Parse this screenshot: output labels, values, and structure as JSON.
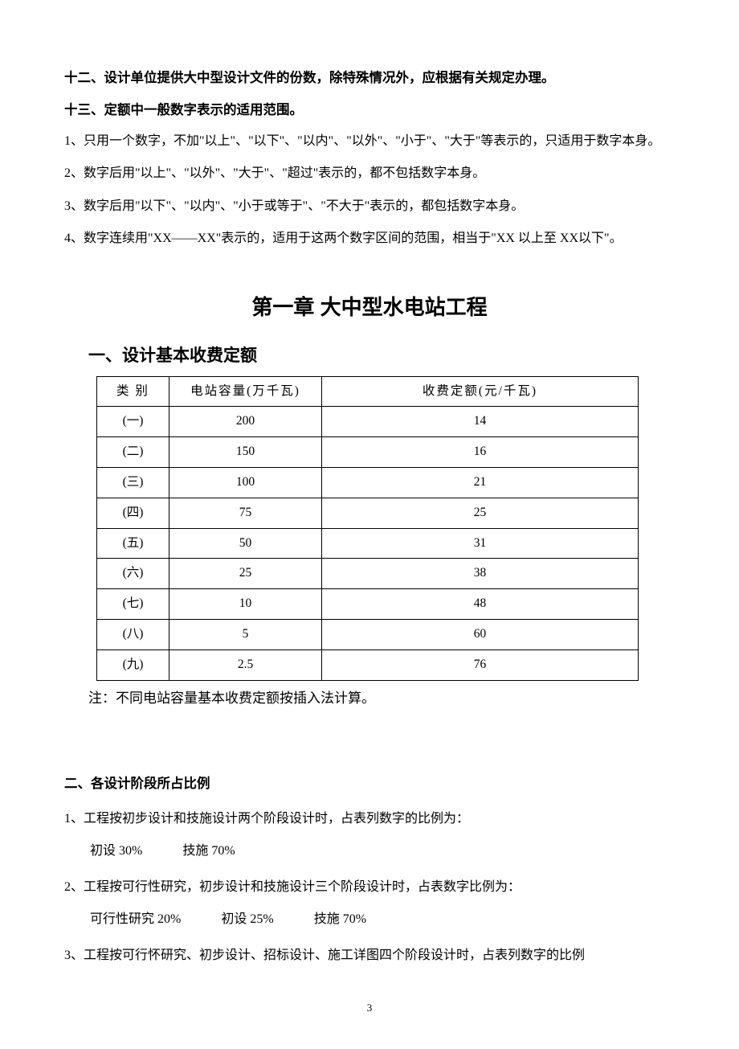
{
  "headings": {
    "h12": "十二、设计单位提供大中型设计文件的份数，除特殊情况外，应根据有关规定办理。",
    "h13": "十三、定额中一般数字表示的适用范围。"
  },
  "paras": {
    "p1": "1、只用一个数字，不加\"以上\"、\"以下\"、\"以内\"、\"以外\"、\"小于\"、\"大于\"等表示的，只适用于数字本身。",
    "p2": "2、数字后用\"以上\"、\"以外\"、\"大于\"、\"超过\"表示的，都不包括数字本身。",
    "p3": "3、数字后用\"以下\"、\"以内\"、\"小于或等于\"、\"不大于\"表示的，都包括数字本身。",
    "p4": "4、数字连续用\"XX——XX\"表示的，适用于这两个数字区间的范围，相当于\"XX 以上至 XX以下\"。"
  },
  "chapter": {
    "title": "第一章 大中型水电站工程",
    "section1": "一、设计基本收费定额",
    "section2": "二、各设计阶段所占比例"
  },
  "table": {
    "headers": {
      "c1": "类 别",
      "c2": "电站容量(万千瓦)",
      "c3": "收费定额(元/千瓦)"
    },
    "rows": [
      {
        "cat": "(一)",
        "cap": "200",
        "fee": "14"
      },
      {
        "cat": "(二)",
        "cap": "150",
        "fee": "16"
      },
      {
        "cat": "(三)",
        "cap": "100",
        "fee": "21"
      },
      {
        "cat": "(四)",
        "cap": "75",
        "fee": "25"
      },
      {
        "cat": "(五)",
        "cap": "50",
        "fee": "31"
      },
      {
        "cat": "(六)",
        "cap": "25",
        "fee": "38"
      },
      {
        "cat": "(七)",
        "cap": "10",
        "fee": "48"
      },
      {
        "cat": "(八)",
        "cap": "5",
        "fee": "60"
      },
      {
        "cat": "(九)",
        "cap": "2.5",
        "fee": "76"
      }
    ],
    "note": "注：不同电站容量基本收费定额按插入法计算。"
  },
  "stages": {
    "s1": "1、工程按初步设计和技施设计两个阶段设计时，占表列数字的比例为：",
    "s1_detail_a": "初设 30%",
    "s1_detail_b": "技施 70%",
    "s2": "2、工程按可行性研究，初步设计和技施设计三个阶段设计时，占表数字比例为：",
    "s2_detail_a": "可行性研究 20%",
    "s2_detail_b": "初设 25%",
    "s2_detail_c": "技施  70%",
    "s3": "3、工程按可行怀研究、初步设计、招标设计、施工详图四个阶段设计时，占表列数字的比例"
  },
  "page_number": "3"
}
